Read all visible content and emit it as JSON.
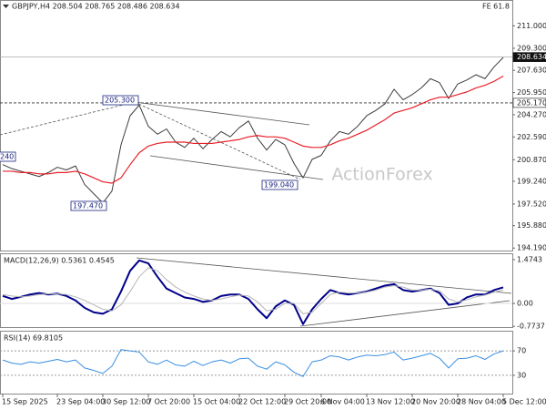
{
  "chart_data": [
    {
      "type": "line",
      "title": "GBPJPY,H4 208.504 208.765 208.486 208.634",
      "subtitle": "FE 61.8",
      "watermark": "ActionForex",
      "categories": [
        "15 Sep 2025",
        null,
        null,
        null,
        null,
        null,
        "23 Sep 04:00",
        null,
        null,
        null,
        null,
        "30 Sep 12:00",
        null,
        null,
        null,
        null,
        "7 Oct 20:00",
        null,
        null,
        null,
        null,
        "15 Oct 04:00",
        null,
        null,
        null,
        null,
        "22 Oct 12:00",
        null,
        null,
        null,
        null,
        "29 Oct 20:00",
        null,
        null,
        null,
        "6 Nov 04:00",
        null,
        null,
        null,
        null,
        "13 Nov 12:00",
        null,
        null,
        null,
        null,
        "20 Nov 20:00",
        null,
        null,
        null,
        null,
        "28 Nov 04:00",
        null,
        null,
        null,
        null,
        "5 Dec 12:00"
      ],
      "series": [
        {
          "color": "#3c3c3c",
          "values": [
            200.5,
            200.2,
            200.0,
            199.8,
            199.6,
            199.9,
            200.3,
            200.1,
            200.4,
            199.0,
            198.3,
            197.6,
            198.5,
            202.0,
            204.2,
            205.0,
            203.4,
            202.8,
            203.2,
            202.2,
            201.8,
            202.5,
            201.7,
            202.4,
            203.0,
            202.6,
            203.3,
            203.8,
            202.5,
            201.6,
            202.4,
            202.0,
            200.6,
            199.5,
            200.9,
            201.2,
            202.3,
            203.0,
            202.8,
            203.4,
            204.2,
            204.6,
            205.1,
            206.2,
            205.4,
            205.8,
            206.3,
            207.0,
            206.7,
            205.5,
            206.6,
            206.9,
            207.3,
            207.0,
            207.9,
            208.6
          ]
        },
        {
          "color": "#e8202a",
          "values": [
            200.0,
            200.0,
            199.9,
            199.9,
            199.8,
            199.8,
            199.9,
            199.9,
            200.0,
            199.8,
            199.5,
            199.2,
            199.1,
            199.5,
            200.5,
            201.4,
            201.9,
            202.1,
            202.2,
            202.2,
            202.2,
            202.1,
            202.1,
            202.1,
            202.2,
            202.3,
            202.4,
            202.6,
            202.7,
            202.6,
            202.6,
            202.5,
            202.2,
            201.9,
            201.8,
            201.8,
            202.0,
            202.3,
            202.5,
            202.8,
            203.1,
            203.5,
            203.9,
            204.4,
            204.6,
            204.8,
            205.1,
            205.4,
            205.6,
            205.6,
            205.8,
            206.0,
            206.3,
            206.5,
            206.8,
            207.2
          ]
        }
      ],
      "ylim": [
        194.0,
        212.4
      ],
      "yticks": [
        {
          "value": 211.0,
          "label": "211.000"
        },
        {
          "value": 209.3,
          "label": "209.300"
        },
        {
          "value": 207.63,
          "label": "207.630"
        },
        {
          "value": 205.95,
          "label": "205.950"
        },
        {
          "value": 204.27,
          "label": "204.270"
        },
        {
          "value": 202.59,
          "label": "202.590"
        },
        {
          "value": 200.87,
          "label": "200.870"
        },
        {
          "value": 199.24,
          "label": "199.240"
        },
        {
          "value": 197.52,
          "label": "197.520"
        },
        {
          "value": 195.88,
          "label": "195.880"
        },
        {
          "value": 194.19,
          "label": "194.190"
        }
      ],
      "hlines": [
        {
          "value": 208.634,
          "label": "208.634"
        },
        {
          "value": 205.17,
          "label": "205.170"
        }
      ],
      "annotations": [
        "205.300",
        "197.470",
        "199.040",
        "240"
      ]
    },
    {
      "type": "line",
      "title": "MACD(12,26,9) 0.5361 0.4545",
      "series": [
        {
          "color": "#00008b",
          "values": [
            0.25,
            0.15,
            0.22,
            0.3,
            0.35,
            0.3,
            0.33,
            0.25,
            0.1,
            -0.15,
            -0.3,
            -0.35,
            -0.2,
            0.4,
            1.1,
            1.45,
            1.35,
            0.9,
            0.5,
            0.35,
            0.2,
            0.15,
            0.05,
            0.1,
            0.25,
            0.3,
            0.3,
            0.15,
            -0.2,
            -0.5,
            -0.1,
            0.1,
            -0.05,
            -0.7,
            -0.2,
            0.15,
            0.45,
            0.35,
            0.3,
            0.35,
            0.4,
            0.5,
            0.6,
            0.65,
            0.45,
            0.4,
            0.45,
            0.5,
            0.35,
            -0.05,
            0.0,
            0.2,
            0.3,
            0.3,
            0.45,
            0.54
          ]
        },
        {
          "color": "#b4b4b4",
          "values": [
            0.3,
            0.25,
            0.22,
            0.25,
            0.3,
            0.32,
            0.32,
            0.3,
            0.22,
            0.1,
            -0.05,
            -0.2,
            -0.25,
            -0.05,
            0.4,
            0.9,
            1.2,
            1.1,
            0.8,
            0.55,
            0.38,
            0.25,
            0.15,
            0.1,
            0.15,
            0.22,
            0.28,
            0.25,
            0.05,
            -0.25,
            -0.2,
            0.0,
            0.0,
            -0.35,
            -0.3,
            0.0,
            0.3,
            0.38,
            0.35,
            0.35,
            0.38,
            0.45,
            0.55,
            0.6,
            0.55,
            0.45,
            0.45,
            0.48,
            0.42,
            0.15,
            0.05,
            0.12,
            0.22,
            0.28,
            0.38,
            0.45
          ]
        }
      ],
      "ylim": [
        -0.8,
        1.69
      ],
      "yticks": [
        1.4743,
        {
          "value": 0,
          "label": "0.00"
        },
        -0.7737
      ]
    },
    {
      "type": "line",
      "title": "RSI(14) 69.8105",
      "series": [
        {
          "color": "#3a8fe0",
          "values": [
            55,
            50,
            48,
            52,
            50,
            53,
            56,
            52,
            55,
            42,
            38,
            33,
            45,
            72,
            70,
            68,
            52,
            48,
            55,
            47,
            45,
            53,
            46,
            52,
            55,
            50,
            57,
            58,
            45,
            40,
            52,
            47,
            35,
            28,
            52,
            55,
            62,
            60,
            55,
            60,
            63,
            62,
            64,
            68,
            55,
            58,
            62,
            66,
            58,
            42,
            57,
            58,
            62,
            56,
            65,
            70
          ]
        }
      ],
      "ylim": [
        0,
        100
      ],
      "yticks": [
        70,
        30
      ]
    }
  ]
}
